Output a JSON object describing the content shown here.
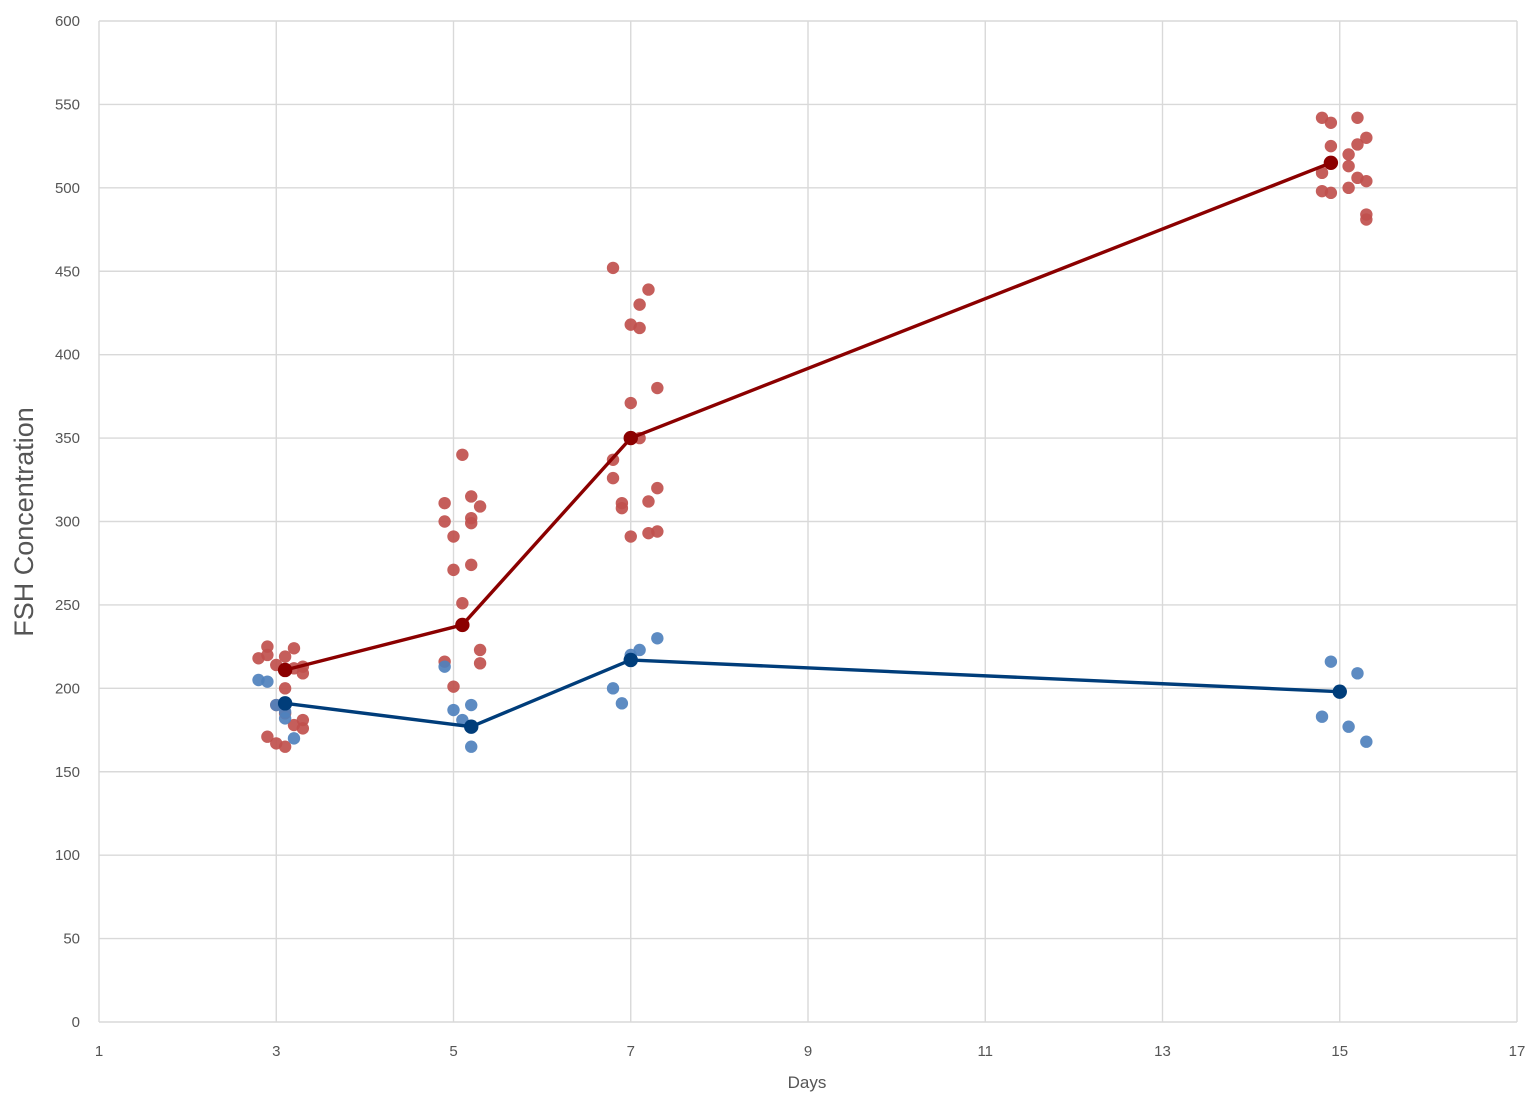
{
  "chart_data": {
    "type": "scatter",
    "xlabel": "Days",
    "ylabel": "FSH Concentration",
    "xlim": [
      1,
      17
    ],
    "ylim": [
      0,
      600
    ],
    "x_ticks": [
      1,
      3,
      5,
      7,
      9,
      11,
      13,
      15,
      17
    ],
    "y_ticks": [
      0,
      50,
      100,
      150,
      200,
      250,
      300,
      350,
      400,
      450,
      500,
      550,
      600
    ],
    "grid": true,
    "legend": "none",
    "series": [
      {
        "color": "#8b0000",
        "point_color": "#c0504d",
        "mean_line": {
          "x": [
            3.1,
            5.1,
            7.0,
            14.9
          ],
          "y": [
            211,
            238,
            350,
            515
          ]
        },
        "points": [
          {
            "x": 2.8,
            "y": 218
          },
          {
            "x": 2.9,
            "y": 225
          },
          {
            "x": 2.9,
            "y": 220
          },
          {
            "x": 3.0,
            "y": 214
          },
          {
            "x": 3.1,
            "y": 219
          },
          {
            "x": 3.2,
            "y": 224
          },
          {
            "x": 3.2,
            "y": 212
          },
          {
            "x": 3.3,
            "y": 209
          },
          {
            "x": 3.3,
            "y": 213
          },
          {
            "x": 3.1,
            "y": 200
          },
          {
            "x": 3.0,
            "y": 190
          },
          {
            "x": 3.1,
            "y": 185
          },
          {
            "x": 3.2,
            "y": 178
          },
          {
            "x": 3.3,
            "y": 181
          },
          {
            "x": 3.3,
            "y": 176
          },
          {
            "x": 2.9,
            "y": 171
          },
          {
            "x": 3.0,
            "y": 167
          },
          {
            "x": 3.1,
            "y": 165
          },
          {
            "x": 4.9,
            "y": 311
          },
          {
            "x": 4.9,
            "y": 300
          },
          {
            "x": 5.0,
            "y": 291
          },
          {
            "x": 5.0,
            "y": 271
          },
          {
            "x": 5.1,
            "y": 340
          },
          {
            "x": 5.1,
            "y": 251
          },
          {
            "x": 5.2,
            "y": 315
          },
          {
            "x": 5.2,
            "y": 302
          },
          {
            "x": 5.2,
            "y": 299
          },
          {
            "x": 5.2,
            "y": 274
          },
          {
            "x": 5.3,
            "y": 309
          },
          {
            "x": 5.3,
            "y": 223
          },
          {
            "x": 5.3,
            "y": 215
          },
          {
            "x": 4.9,
            "y": 216
          },
          {
            "x": 5.0,
            "y": 201
          },
          {
            "x": 6.8,
            "y": 452
          },
          {
            "x": 6.8,
            "y": 337
          },
          {
            "x": 6.8,
            "y": 326
          },
          {
            "x": 6.9,
            "y": 311
          },
          {
            "x": 6.9,
            "y": 308
          },
          {
            "x": 7.0,
            "y": 418
          },
          {
            "x": 7.0,
            "y": 371
          },
          {
            "x": 7.0,
            "y": 291
          },
          {
            "x": 7.1,
            "y": 430
          },
          {
            "x": 7.1,
            "y": 416
          },
          {
            "x": 7.1,
            "y": 350
          },
          {
            "x": 7.2,
            "y": 439
          },
          {
            "x": 7.2,
            "y": 312
          },
          {
            "x": 7.2,
            "y": 293
          },
          {
            "x": 7.3,
            "y": 380
          },
          {
            "x": 7.3,
            "y": 320
          },
          {
            "x": 7.3,
            "y": 294
          },
          {
            "x": 14.8,
            "y": 542
          },
          {
            "x": 14.8,
            "y": 509
          },
          {
            "x": 14.8,
            "y": 498
          },
          {
            "x": 14.9,
            "y": 539
          },
          {
            "x": 14.9,
            "y": 525
          },
          {
            "x": 14.9,
            "y": 497
          },
          {
            "x": 15.1,
            "y": 520
          },
          {
            "x": 15.1,
            "y": 513
          },
          {
            "x": 15.1,
            "y": 500
          },
          {
            "x": 15.2,
            "y": 542
          },
          {
            "x": 15.2,
            "y": 526
          },
          {
            "x": 15.2,
            "y": 506
          },
          {
            "x": 15.3,
            "y": 530
          },
          {
            "x": 15.3,
            "y": 504
          },
          {
            "x": 15.3,
            "y": 484
          },
          {
            "x": 15.3,
            "y": 481
          }
        ]
      },
      {
        "color": "#003d7a",
        "point_color": "#4f81bd",
        "mean_line": {
          "x": [
            3.1,
            5.2,
            7.0,
            15.0
          ],
          "y": [
            191,
            177,
            217,
            198
          ]
        },
        "points": [
          {
            "x": 2.8,
            "y": 205
          },
          {
            "x": 2.9,
            "y": 204
          },
          {
            "x": 3.0,
            "y": 190
          },
          {
            "x": 3.1,
            "y": 182
          },
          {
            "x": 3.1,
            "y": 186
          },
          {
            "x": 3.2,
            "y": 170
          },
          {
            "x": 4.9,
            "y": 213
          },
          {
            "x": 5.0,
            "y": 187
          },
          {
            "x": 5.1,
            "y": 181
          },
          {
            "x": 5.2,
            "y": 190
          },
          {
            "x": 5.2,
            "y": 165
          },
          {
            "x": 6.8,
            "y": 200
          },
          {
            "x": 6.9,
            "y": 191
          },
          {
            "x": 7.0,
            "y": 220
          },
          {
            "x": 7.1,
            "y": 223
          },
          {
            "x": 7.3,
            "y": 230
          },
          {
            "x": 14.8,
            "y": 183
          },
          {
            "x": 14.9,
            "y": 216
          },
          {
            "x": 15.1,
            "y": 177
          },
          {
            "x": 15.2,
            "y": 209
          },
          {
            "x": 15.3,
            "y": 168
          }
        ]
      }
    ]
  }
}
